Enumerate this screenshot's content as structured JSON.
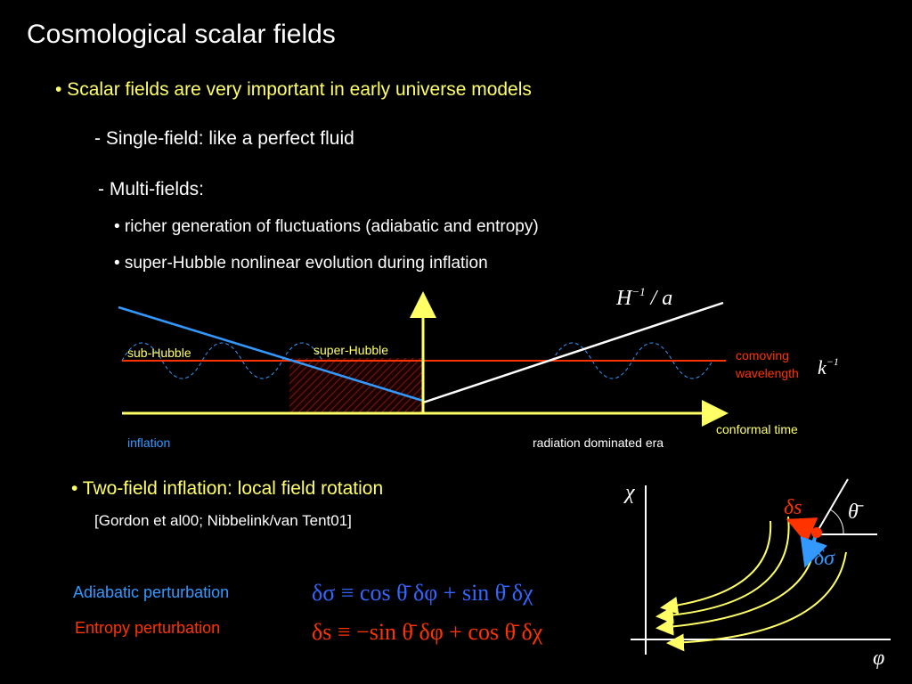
{
  "header": {
    "title": "Cosmological scalar fields"
  },
  "bullets": [
    {
      "text": "• Scalar fields are very important in early universe models"
    },
    {
      "text": "- Single-field: like a perfect fluid"
    },
    {
      "text": "- Multi-fields:"
    },
    {
      "text": "• richer generation of fluctuations (adiabatic and entropy)"
    },
    {
      "text": "• super-Hubble nonlinear evolution during inflation"
    }
  ],
  "horizon_diagram": {
    "hubble_label": {
      "base": "H",
      "exponent": "−1",
      "rest": " / a"
    },
    "sub_hubble": "sub-Hubble",
    "super_hubble": "super-Hubble",
    "comoving": [
      "comoving",
      "wavelength"
    ],
    "k_label": {
      "base": "k",
      "exponent": "−1"
    },
    "time_axis": "conformal time",
    "inflation": "inflation",
    "radiation": "radiation dominated era"
  },
  "two_field": {
    "bullet": "• Two-field inflation: local field rotation",
    "reference": "[Gordon et al00; Nibbelink/van Tent01]",
    "adiabatic": "Adiabatic perturbation",
    "entropy": "Entropy perturbation",
    "adiabatic_eq": "δσ ≡ cos θ̄ δφ + sin θ̄ δχ",
    "entropy_eq": "δs ≡ −sin θ̄ δφ + cos θ̄ δχ"
  },
  "field_plot": {
    "y_axis": "χ",
    "x_axis": "φ",
    "ds": "δs",
    "theta": "θ̄",
    "dsigma": "δσ"
  }
}
